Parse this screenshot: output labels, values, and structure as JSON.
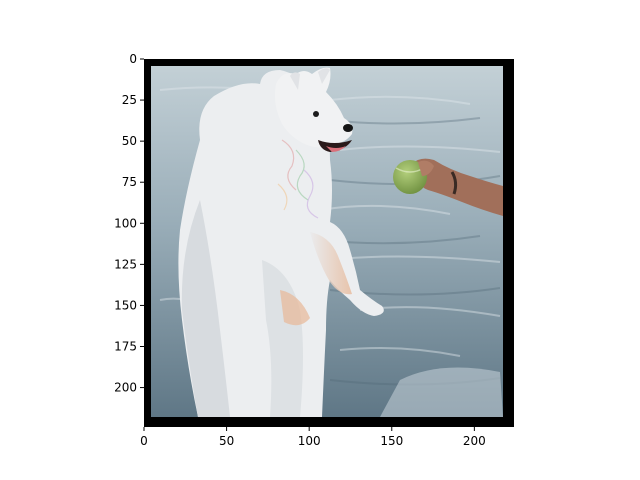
{
  "figure": {
    "image_description_icon": "samoyed-dog-standing-in-water-photo-icon",
    "x_axis": {
      "range": [
        0,
        224
      ],
      "ticks": [
        {
          "value": 0,
          "label": "0"
        },
        {
          "value": 50,
          "label": "50"
        },
        {
          "value": 100,
          "label": "100"
        },
        {
          "value": 150,
          "label": "150"
        },
        {
          "value": 200,
          "label": "200"
        }
      ]
    },
    "y_axis": {
      "range": [
        0,
        224
      ],
      "inverted": true,
      "ticks": [
        {
          "value": 0,
          "label": "0"
        },
        {
          "value": 25,
          "label": "25"
        },
        {
          "value": 50,
          "label": "50"
        },
        {
          "value": 75,
          "label": "75"
        },
        {
          "value": 100,
          "label": "100"
        },
        {
          "value": 125,
          "label": "125"
        },
        {
          "value": 150,
          "label": "150"
        },
        {
          "value": 175,
          "label": "175"
        },
        {
          "value": 200,
          "label": "200"
        }
      ]
    },
    "colors": {
      "frame": "#000000",
      "water_light": "#b8c6ce",
      "water_dark": "#6f8796",
      "fur": "#eeeff0",
      "ball": "#8fb25a",
      "skin": "#a0705c"
    }
  }
}
